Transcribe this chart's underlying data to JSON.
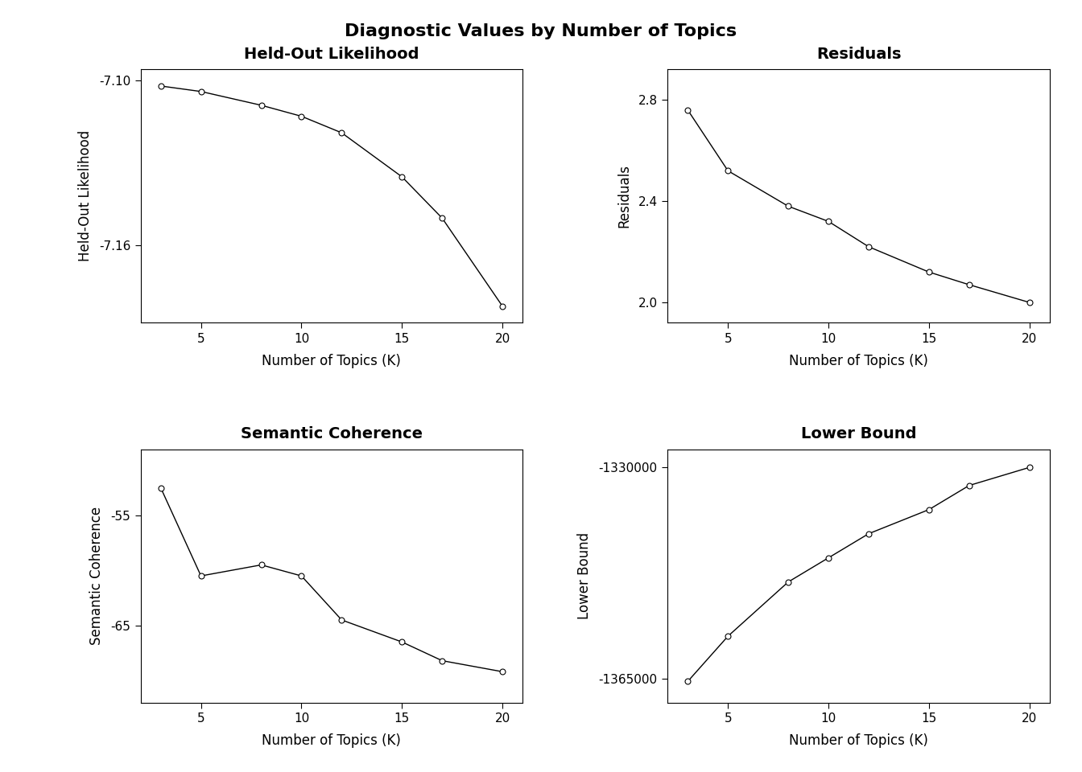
{
  "title": "Diagnostic Values by Number of Topics",
  "xlabel": "Number of Topics (K)",
  "x": [
    3,
    5,
    8,
    10,
    12,
    15,
    17,
    20
  ],
  "held_out": {
    "title": "Held-Out Likelihood",
    "ylabel": "Held-Out Likelihood",
    "y": [
      -7.102,
      -7.104,
      -7.109,
      -7.113,
      -7.119,
      -7.135,
      -7.15,
      -7.182
    ],
    "yticks": [
      -7.1,
      -7.16
    ],
    "ylim": [
      -7.188,
      -7.096
    ]
  },
  "residuals": {
    "title": "Residuals",
    "ylabel": "Residuals",
    "y": [
      2.76,
      2.52,
      2.38,
      2.32,
      2.22,
      2.12,
      2.07,
      2.0
    ],
    "yticks": [
      2.0,
      2.4,
      2.8
    ],
    "ylim": [
      1.92,
      2.92
    ]
  },
  "semantic": {
    "title": "Semantic Coherence",
    "ylabel": "Semantic Coherence",
    "y": [
      -52.5,
      -60.5,
      -59.5,
      -60.5,
      -64.5,
      -66.5,
      -68.2,
      -69.2
    ],
    "yticks": [
      -55,
      -65
    ],
    "ylim": [
      -72,
      -49
    ]
  },
  "lower_bound": {
    "title": "Lower Bound",
    "ylabel": "Lower Bound",
    "y": [
      -1365500,
      -1358000,
      -1349000,
      -1345000,
      -1341000,
      -1337000,
      -1333000,
      -1330000
    ],
    "yticks": [
      -1365000,
      -1330000
    ],
    "ylim": [
      -1369000,
      -1327000
    ]
  },
  "xticks": [
    5,
    10,
    15,
    20
  ],
  "xlim": [
    2,
    21
  ],
  "bg_color": "#ffffff",
  "line_color": "#000000",
  "marker_facecolor": "white",
  "marker_edgecolor": "black",
  "marker_size": 5,
  "linewidth": 1.0,
  "title_fontsize": 16,
  "subplot_title_fontsize": 14,
  "label_fontsize": 12,
  "tick_fontsize": 11
}
